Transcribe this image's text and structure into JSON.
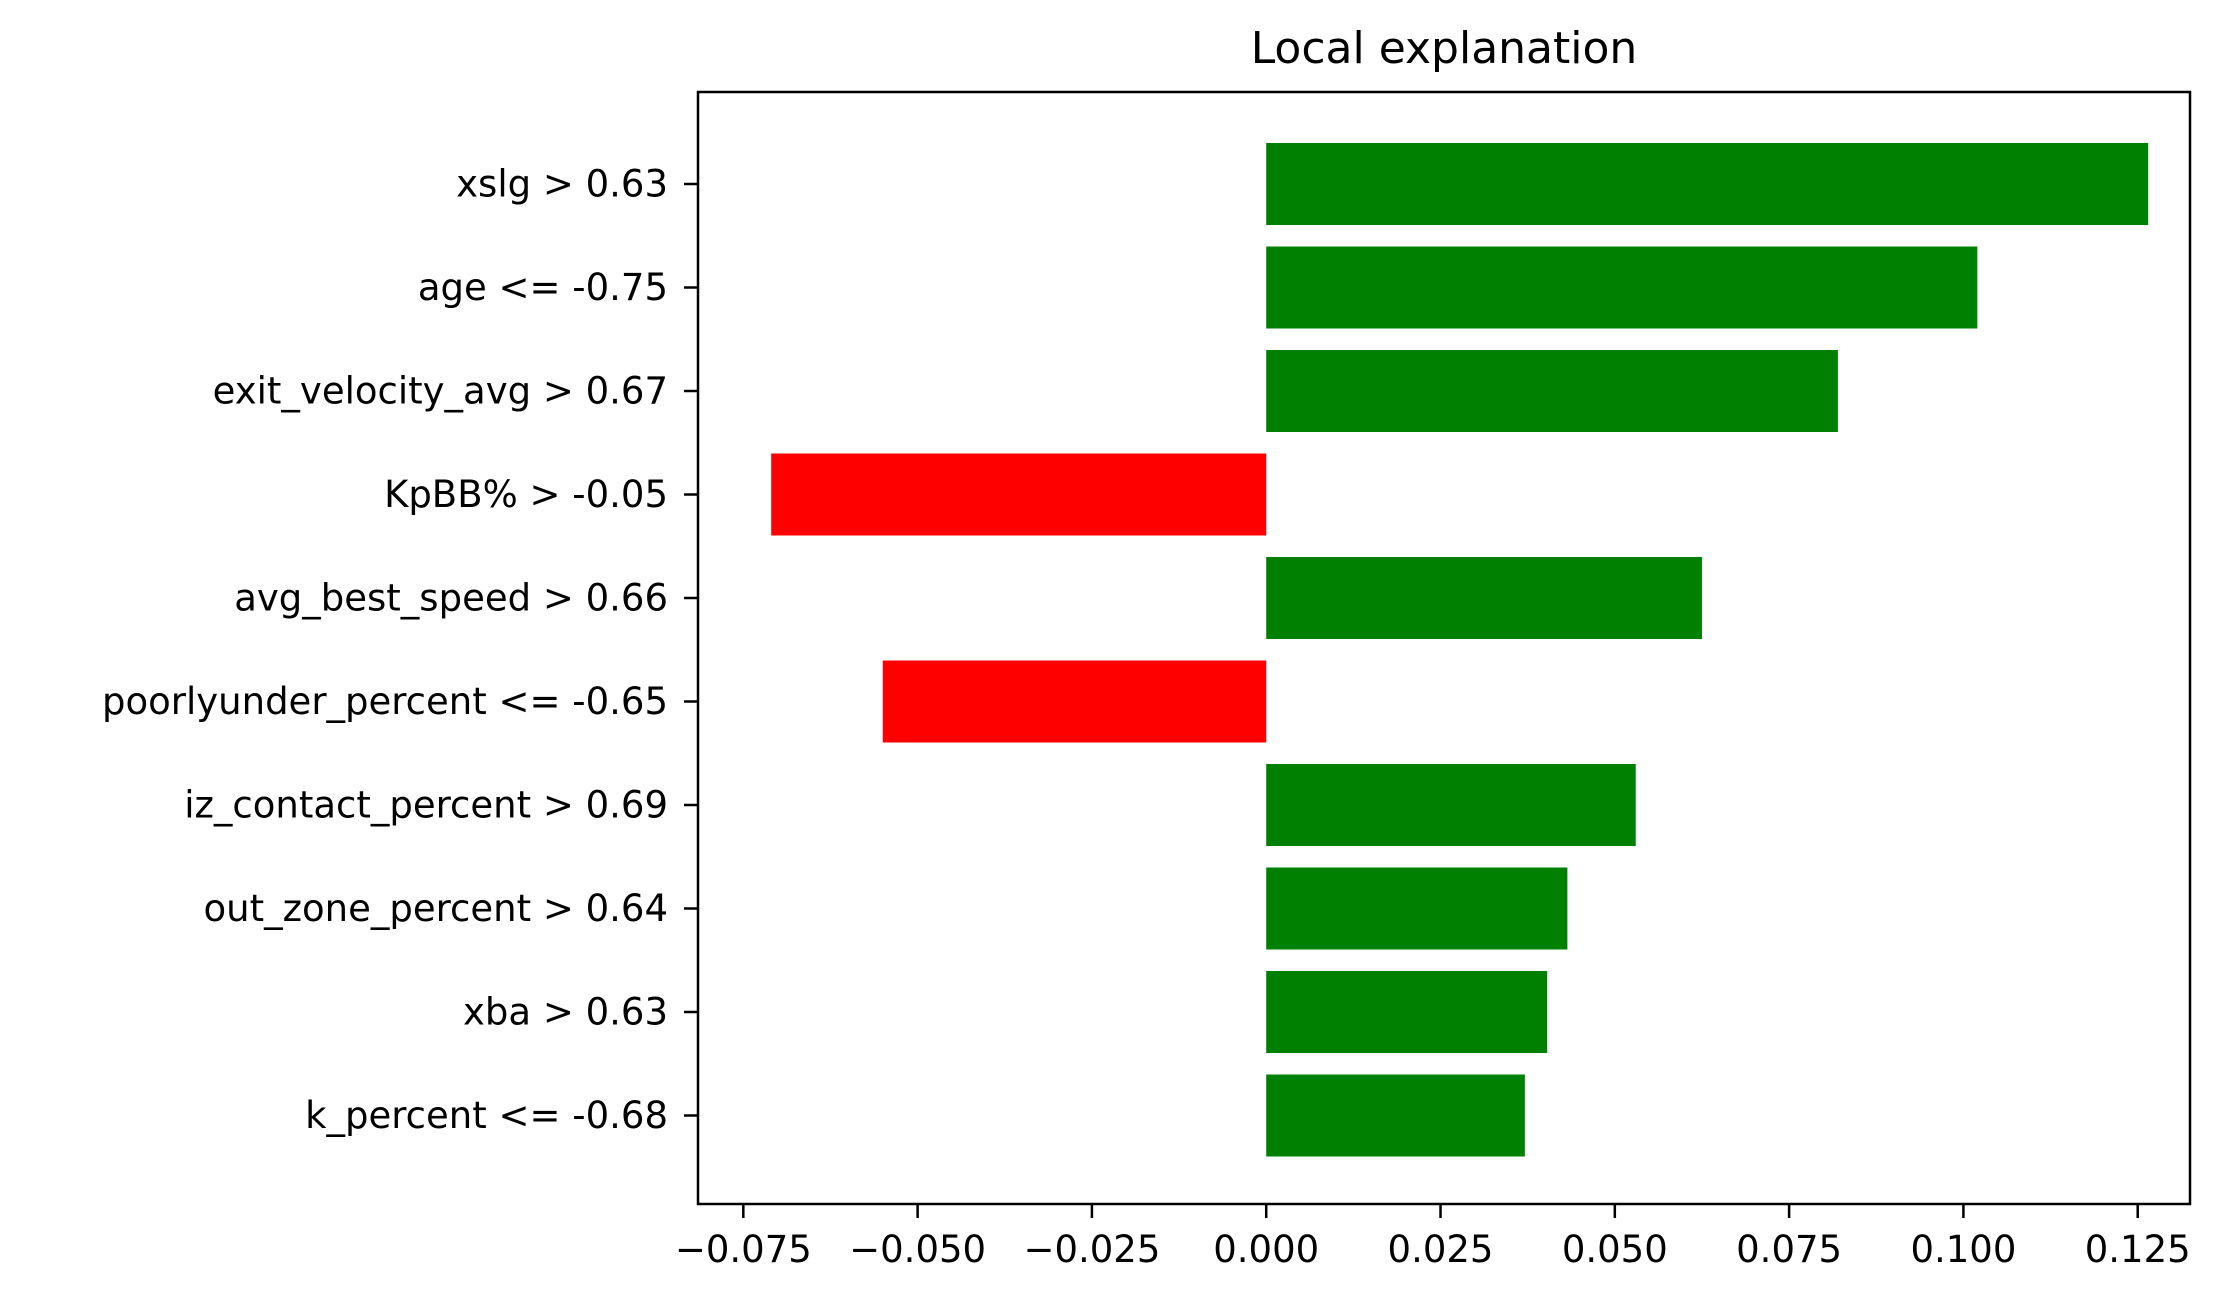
{
  "chart_data": {
    "type": "bar",
    "orientation": "horizontal",
    "title": "Local explanation",
    "xlabel": "",
    "ylabel": "",
    "xlim": [
      -0.0815,
      0.1325
    ],
    "categories": [
      "xslg > 0.63",
      "age <= -0.75",
      "exit_velocity_avg > 0.67",
      "KpBB% > -0.05",
      "avg_best_speed > 0.66",
      "poorlyunder_percent <= -0.65",
      "iz_contact_percent > 0.69",
      "out_zone_percent > 0.64",
      "xba > 0.63",
      "k_percent <= -0.68"
    ],
    "values": [
      0.1265,
      0.102,
      0.082,
      -0.071,
      0.0625,
      -0.055,
      0.053,
      0.0432,
      0.0403,
      0.0371
    ],
    "positive_color": "#008000",
    "negative_color": "#ff0000",
    "xticks": [
      -0.075,
      -0.05,
      -0.025,
      0,
      0.025,
      0.05,
      0.075,
      0.1,
      0.125
    ],
    "xtick_labels": [
      "−0.075",
      "−0.050",
      "−0.025",
      "0.000",
      "0.025",
      "0.050",
      "0.075",
      "0.100",
      "0.125"
    ],
    "grid": false,
    "legend": "none"
  }
}
